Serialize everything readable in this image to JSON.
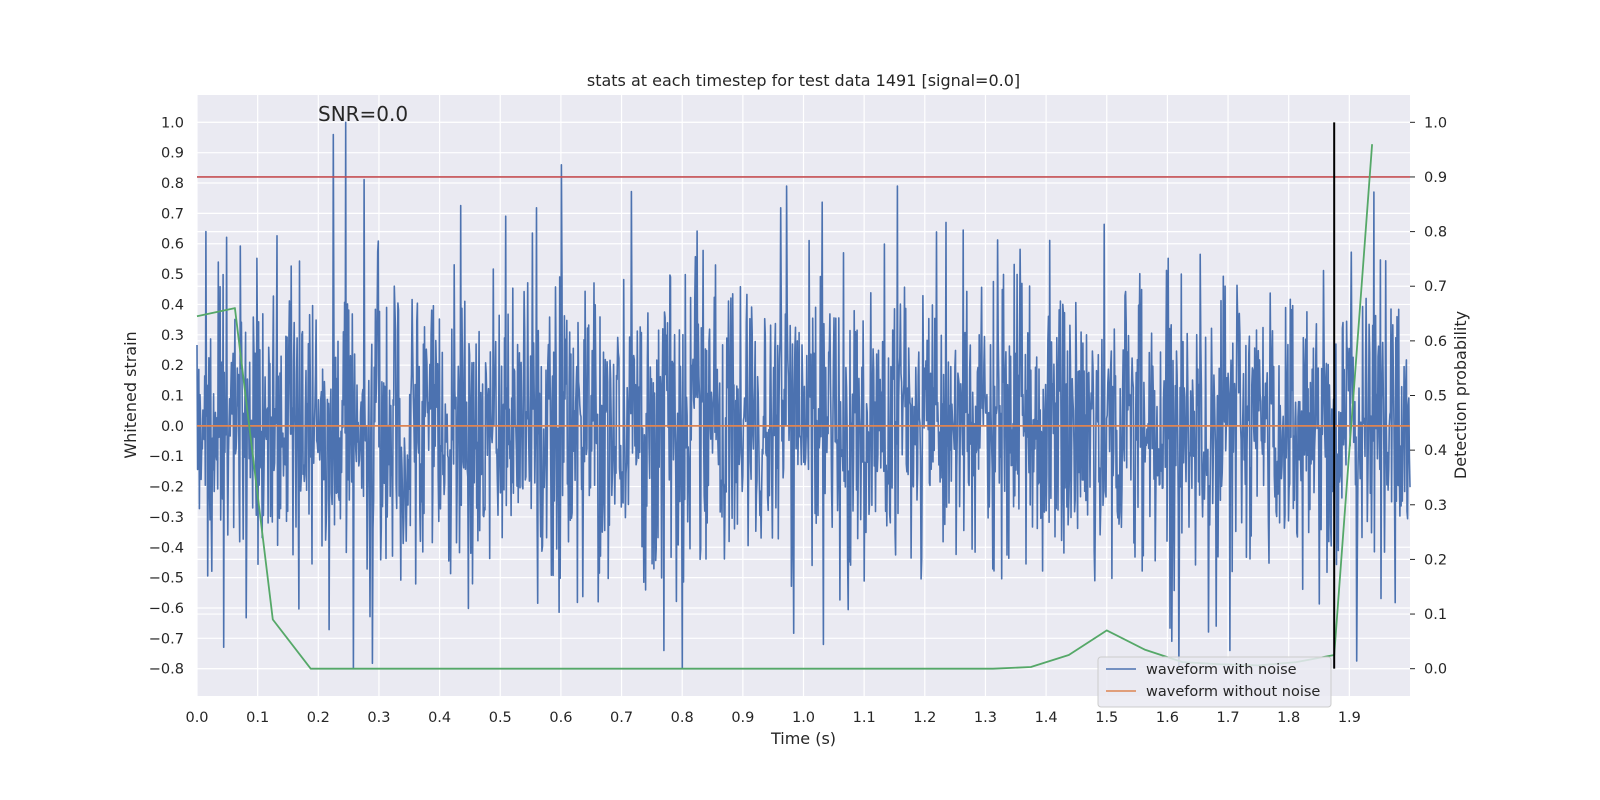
{
  "chart_data": {
    "type": "line",
    "title": "stats at each timestep for test data 1491 [signal=0.0]",
    "xlabel": "Time (s)",
    "ylabel": "Whitened strain",
    "y2label": "Detection probability",
    "annotation": "SNR=0.0",
    "xlim": [
      0.0,
      2.0
    ],
    "ylim": [
      -0.89,
      1.09
    ],
    "y2lim": [
      -0.05,
      1.05
    ],
    "xticks": [
      "0.0",
      "0.1",
      "0.2",
      "0.3",
      "0.4",
      "0.5",
      "0.6",
      "0.7",
      "0.8",
      "0.9",
      "1.0",
      "1.1",
      "1.2",
      "1.3",
      "1.4",
      "1.5",
      "1.6",
      "1.7",
      "1.8",
      "1.9"
    ],
    "yticks": [
      "1.0",
      "0.9",
      "0.8",
      "0.7",
      "0.6",
      "0.5",
      "0.4",
      "0.3",
      "0.2",
      "0.1",
      "0.0",
      "−0.1",
      "−0.2",
      "−0.3",
      "−0.4",
      "−0.5",
      "−0.6",
      "−0.7",
      "−0.8"
    ],
    "y2ticks": [
      "1.0",
      "0.9",
      "0.8",
      "0.7",
      "0.6",
      "0.5",
      "0.4",
      "0.3",
      "0.2",
      "0.1",
      "0.0"
    ],
    "grid": true,
    "legend_placement": "lower-right",
    "colors": {
      "noisy": "#4c72b0",
      "clean": "#dd8452",
      "prob": "#55a868",
      "threshold": "#c44e52",
      "marker": "#000000",
      "background": "#eaeaf2",
      "grid": "#ffffff"
    },
    "series": [
      {
        "name": "waveform with noise",
        "kind": "noise",
        "x_range": [
          0.0,
          2.0
        ],
        "n_points": 2048,
        "std": 0.24,
        "min": -0.8,
        "max": 1.0,
        "peaks": [
          [
            0.225,
            0.96
          ],
          [
            0.245,
            1.0
          ],
          [
            0.258,
            -0.8
          ],
          [
            0.972,
            0.79
          ],
          [
            1.155,
            0.79
          ],
          [
            1.703,
            -0.74
          ],
          [
            0.77,
            -0.74
          ],
          [
            0.015,
            0.64
          ],
          [
            1.94,
            0.77
          ]
        ]
      },
      {
        "name": "waveform without noise",
        "x": [
          0.0,
          2.0
        ],
        "y": [
          0.0,
          0.0
        ]
      },
      {
        "name": "Detection probability",
        "axis": "y2",
        "x": [
          0.0,
          0.0625,
          0.125,
          0.1875,
          0.25,
          0.3125,
          0.375,
          0.4375,
          0.5,
          0.5625,
          0.625,
          0.6875,
          0.75,
          0.8125,
          0.875,
          0.9375,
          1.0,
          1.0625,
          1.125,
          1.1875,
          1.25,
          1.3125,
          1.375,
          1.4375,
          1.5,
          1.5625,
          1.625,
          1.6875,
          1.75,
          1.8125,
          1.875,
          1.9375
        ],
        "y": [
          0.645,
          0.66,
          0.09,
          0.0,
          0.0,
          0.0,
          0.0,
          0.0,
          0.0,
          0.0,
          0.0,
          0.0,
          0.0,
          0.0,
          0.0,
          0.0,
          0.0,
          0.0,
          0.0,
          0.0,
          0.0,
          0.0,
          0.003,
          0.025,
          0.07,
          0.035,
          0.012,
          0.008,
          0.006,
          0.012,
          0.025,
          0.96
        ]
      }
    ],
    "threshold": {
      "axis": "y2",
      "value": 0.9
    },
    "marker": {
      "x": 1.875
    },
    "legend": [
      "waveform with noise",
      "waveform without noise"
    ]
  }
}
